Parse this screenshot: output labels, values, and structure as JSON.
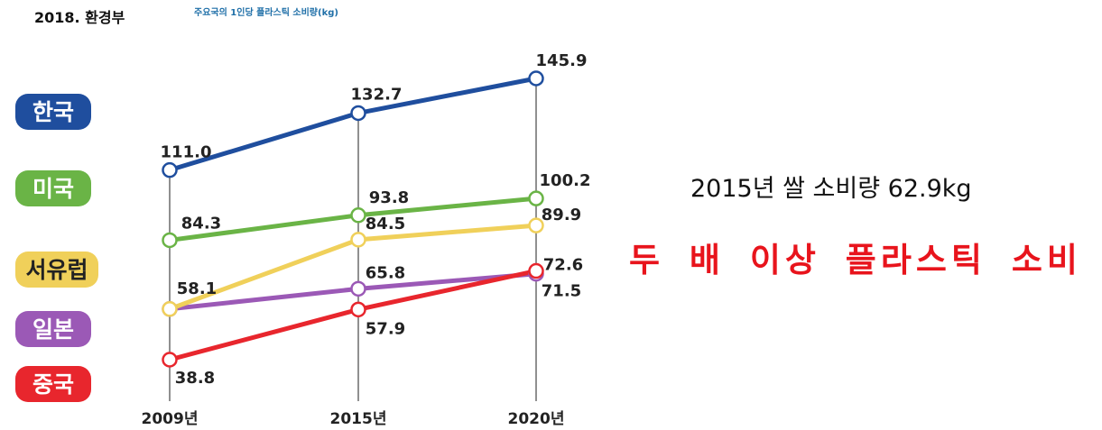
{
  "header": {
    "source": "2018. 환경부",
    "chart_title": "주요국의 1인당 플라스틱 소비량(kg)"
  },
  "side_text": {
    "note": "2015년 쌀 소비량 62.9kg",
    "headline": "두 배 이상 플라스틱 소비"
  },
  "chart_data": {
    "type": "line",
    "title": "주요국의 1인당 플라스틱 소비량(kg)",
    "categories": [
      "2009년",
      "2015년",
      "2020년"
    ],
    "ylim": [
      30,
      150
    ],
    "grid": false,
    "legend_position": "left",
    "series": [
      {
        "name": "한국",
        "values": [
          111.0,
          132.7,
          145.9
        ],
        "color": "#1f4e9e",
        "labels": [
          "111.0",
          "132.7",
          "145.9"
        ]
      },
      {
        "name": "미국",
        "values": [
          84.3,
          93.8,
          100.2
        ],
        "color": "#6ab446",
        "labels": [
          "84.3",
          "93.8",
          "100.2"
        ]
      },
      {
        "name": "서유럽",
        "values": [
          58.1,
          84.5,
          89.9
        ],
        "color": "#f0d05a",
        "labels": [
          "58.1",
          "84.5",
          "89.9"
        ]
      },
      {
        "name": "일본",
        "values": [
          58.1,
          65.8,
          71.5
        ],
        "color": "#9b59b6",
        "labels": [
          "",
          "65.8",
          "71.5"
        ]
      },
      {
        "name": "중국",
        "values": [
          38.8,
          57.9,
          72.6
        ],
        "color": "#e8262d",
        "labels": [
          "38.8",
          "57.9",
          "72.6"
        ]
      }
    ]
  }
}
